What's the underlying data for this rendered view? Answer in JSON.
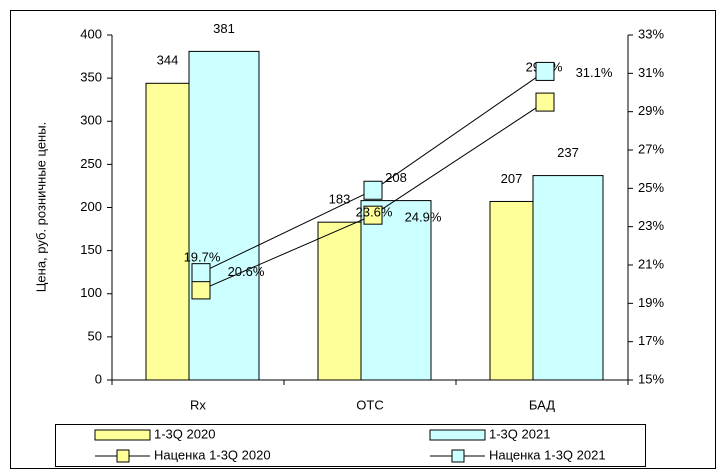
{
  "chart_data": {
    "type": "bar-line",
    "y_label": "Цена, руб. розничные цены.",
    "categories": [
      "Rx",
      "OTC",
      "БАД"
    ],
    "series": [
      {
        "name": "1-3Q 2020",
        "color": "#ffff99",
        "type": "bar",
        "values": [
          344,
          183,
          207
        ]
      },
      {
        "name": "1-3Q 2021",
        "color": "#ccffff",
        "type": "bar",
        "values": [
          381,
          208,
          237
        ]
      },
      {
        "name": "Наценка 1-3Q 2020",
        "color": "#ffff99",
        "type": "line",
        "axis": "y2",
        "values": [
          19.7,
          23.6,
          29.5
        ],
        "value_labels": [
          "19.7%",
          "23.6%",
          "29.5%"
        ]
      },
      {
        "name": "Наценка 1-3Q 2021",
        "color": "#ccffff",
        "type": "line",
        "axis": "y2",
        "values": [
          20.6,
          24.9,
          31.1
        ],
        "value_labels": [
          "20.6%",
          "24.9%",
          "31.1%"
        ]
      }
    ],
    "ylim": [
      0,
      400
    ],
    "yticks": [
      0,
      50,
      100,
      150,
      200,
      250,
      300,
      350,
      400
    ],
    "y2lim": [
      15,
      33
    ],
    "y2ticks": [
      {
        "value": 15,
        "label": "15%"
      },
      {
        "value": 17,
        "label": "17%"
      },
      {
        "value": 19,
        "label": "19%"
      },
      {
        "value": 21,
        "label": "21%"
      },
      {
        "value": 23,
        "label": "23%"
      },
      {
        "value": 25,
        "label": "25%"
      },
      {
        "value": 27,
        "label": "27%"
      },
      {
        "value": 29,
        "label": "29%"
      },
      {
        "value": 31,
        "label": "31%"
      },
      {
        "value": 33,
        "label": "33%"
      }
    ],
    "legend": "bottom"
  }
}
